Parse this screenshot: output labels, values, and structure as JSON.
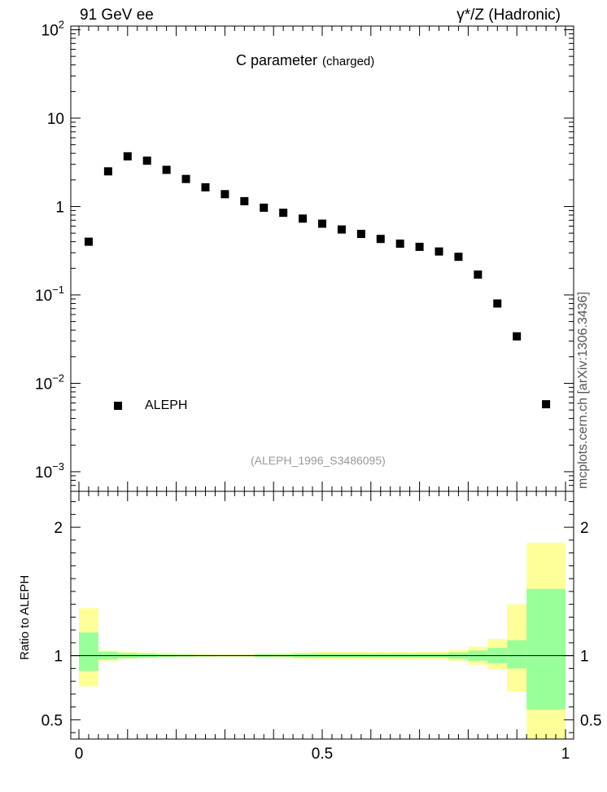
{
  "header": {
    "left": "91 GeV ee",
    "right": "γ*/Z (Hadronic)",
    "side": "mcplots.cern.ch [arXiv:1306.3436]"
  },
  "chart_data": [
    {
      "type": "scatter",
      "title": "C parameter",
      "subtitle": "(charged)",
      "annotation": "(ALEPH_1996_S3486095)",
      "yscale": "log",
      "xlim": [
        0,
        1
      ],
      "ylim": [
        0.0006,
        110
      ],
      "ytick_labels": [
        "10^-3",
        "10^-2",
        "10^-1",
        "1",
        "10",
        "10^2"
      ],
      "legend_placement": "bottom-left",
      "series": [
        {
          "name": "ALEPH",
          "marker": "square",
          "color": "#000000",
          "x": [
            0.02,
            0.06,
            0.1,
            0.14,
            0.18,
            0.22,
            0.26,
            0.3,
            0.34,
            0.38,
            0.42,
            0.46,
            0.5,
            0.54,
            0.58,
            0.62,
            0.66,
            0.7,
            0.74,
            0.78,
            0.82,
            0.86,
            0.9,
            0.96
          ],
          "y": [
            0.4,
            2.5,
            3.7,
            3.3,
            2.6,
            2.05,
            1.65,
            1.38,
            1.15,
            0.97,
            0.85,
            0.73,
            0.64,
            0.55,
            0.49,
            0.43,
            0.38,
            0.35,
            0.31,
            0.27,
            0.17,
            0.08,
            0.034,
            0.0058
          ]
        }
      ]
    },
    {
      "type": "area",
      "ylabel": "Ratio to ALEPH",
      "xlim": [
        0,
        1
      ],
      "ylim": [
        0.35,
        2.28
      ],
      "xtick_labels": [
        "0",
        "0.5",
        "1"
      ],
      "ytick_labels": [
        "0.5",
        "1",
        "2"
      ],
      "reference_line": 1,
      "bins": [
        0,
        0.04,
        0.08,
        0.12,
        0.16,
        0.2,
        0.24,
        0.28,
        0.32,
        0.36,
        0.4,
        0.44,
        0.48,
        0.52,
        0.56,
        0.6,
        0.64,
        0.68,
        0.72,
        0.76,
        0.8,
        0.84,
        0.88,
        0.92,
        1.0
      ],
      "bands": [
        {
          "name": "stat",
          "color": "#99ff99",
          "lower": [
            0.88,
            0.97,
            0.98,
            0.985,
            0.99,
            0.992,
            0.994,
            0.995,
            0.995,
            0.99,
            0.99,
            0.985,
            0.985,
            0.985,
            0.985,
            0.985,
            0.985,
            0.985,
            0.985,
            0.975,
            0.96,
            0.94,
            0.9,
            0.58
          ],
          "upper": [
            1.18,
            1.03,
            1.02,
            1.015,
            1.01,
            1.008,
            1.006,
            1.005,
            1.005,
            1.01,
            1.01,
            1.015,
            1.015,
            1.015,
            1.015,
            1.015,
            1.015,
            1.015,
            1.015,
            1.025,
            1.04,
            1.06,
            1.12,
            1.52
          ]
        },
        {
          "name": "total",
          "color": "#ffff99",
          "lower": [
            0.76,
            0.96,
            0.975,
            0.98,
            0.985,
            0.988,
            0.99,
            0.99,
            0.99,
            0.985,
            0.98,
            0.975,
            0.97,
            0.97,
            0.97,
            0.97,
            0.97,
            0.97,
            0.97,
            0.96,
            0.93,
            0.89,
            0.72,
            0.35
          ],
          "upper": [
            1.37,
            1.04,
            1.03,
            1.025,
            1.02,
            1.015,
            1.012,
            1.01,
            1.01,
            1.015,
            1.02,
            1.025,
            1.03,
            1.03,
            1.03,
            1.03,
            1.03,
            1.03,
            1.03,
            1.045,
            1.07,
            1.13,
            1.4,
            1.88
          ]
        }
      ]
    }
  ]
}
